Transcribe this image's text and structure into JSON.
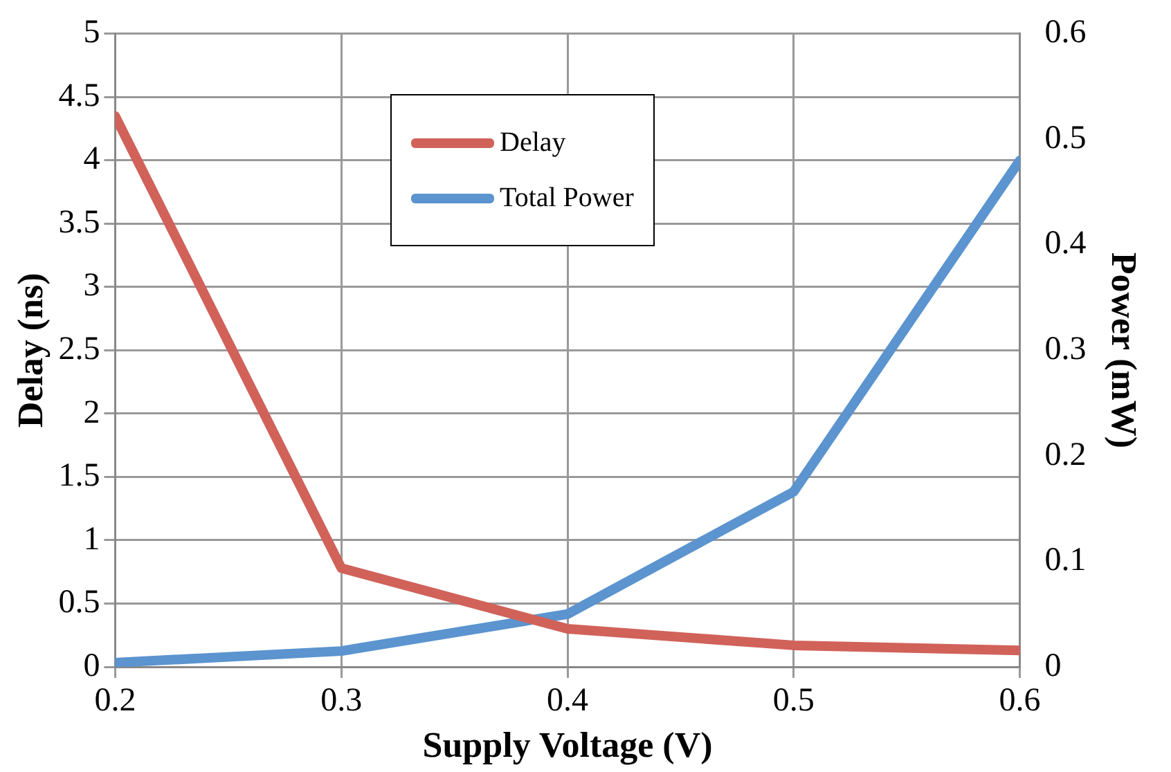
{
  "chart_data": {
    "type": "line",
    "xlabel": "Supply Voltage (V)",
    "ylabel": "Delay (ns)",
    "y2label": "Power (mW)",
    "x": [
      0.2,
      0.3,
      0.4,
      0.5,
      0.6
    ],
    "xlim": [
      0.2,
      0.6
    ],
    "xticks": [
      0.2,
      0.3,
      0.4,
      0.5,
      0.6
    ],
    "ylim": [
      0,
      5
    ],
    "yticks": [
      0,
      0.5,
      1,
      1.5,
      2,
      2.5,
      3,
      3.5,
      4,
      4.5,
      5
    ],
    "y2lim": [
      0,
      0.6
    ],
    "y2ticks": [
      0,
      0.1,
      0.2,
      0.3,
      0.4,
      0.5,
      0.6
    ],
    "series": [
      {
        "name": "Delay",
        "color": "#d0625a",
        "values": [
          4.35,
          0.78,
          0.3,
          0.17,
          0.13
        ]
      },
      {
        "name": "Total Power",
        "color": "#5b94cf",
        "values": [
          0.004,
          0.015,
          0.05,
          0.166,
          0.48
        ],
        "axis": "y2"
      }
    ],
    "grid": true,
    "legend": "top",
    "marker": "none",
    "line_style": "solid"
  }
}
